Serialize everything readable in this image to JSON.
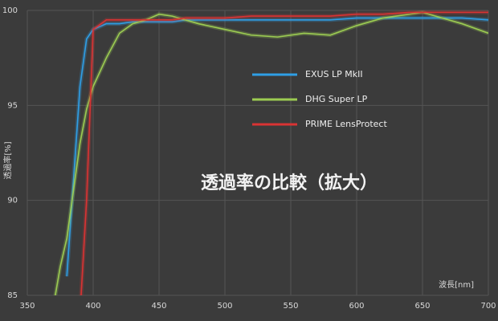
{
  "chart_data": {
    "type": "line",
    "title": "透過率の比較（拡大）",
    "x_label": "波長[nm]",
    "y_label": "透過率[%]",
    "x": [
      370,
      375,
      380,
      385,
      390,
      395,
      400,
      410,
      420,
      430,
      440,
      450,
      460,
      470,
      480,
      500,
      520,
      540,
      560,
      580,
      600,
      620,
      640,
      650,
      660,
      680,
      700
    ],
    "series": [
      {
        "name": "EXUS LP MkII",
        "color": "#2f9fe6",
        "values": [
          null,
          null,
          86,
          91,
          96,
          98.5,
          99,
          99.3,
          99.3,
          99.4,
          99.4,
          99.4,
          99.4,
          99.5,
          99.5,
          99.5,
          99.5,
          99.5,
          99.5,
          99.5,
          99.6,
          99.6,
          99.6,
          99.6,
          99.6,
          99.6,
          99.5
        ]
      },
      {
        "name": "DHG Super LP",
        "color": "#9ccc52",
        "values": [
          84.5,
          86.5,
          88,
          90.5,
          93,
          94.8,
          96,
          97.5,
          98.8,
          99.3,
          99.5,
          99.8,
          99.7,
          99.5,
          99.3,
          99,
          98.7,
          98.6,
          98.8,
          98.7,
          99.2,
          99.6,
          99.8,
          99.9,
          99.7,
          99.3,
          98.8
        ]
      },
      {
        "name": "PRIME LensProtect",
        "color": "#d93333",
        "values": [
          null,
          null,
          null,
          null,
          84,
          90,
          99,
          99.5,
          99.5,
          99.5,
          99.5,
          99.5,
          99.5,
          99.6,
          99.6,
          99.6,
          99.7,
          99.7,
          99.7,
          99.7,
          99.8,
          99.8,
          99.9,
          99.9,
          99.9,
          99.9,
          99.9
        ]
      }
    ],
    "xlim": [
      350,
      700
    ],
    "xticks": [
      350,
      400,
      450,
      500,
      550,
      600,
      650,
      700
    ],
    "ylim": [
      85,
      100
    ],
    "yticks": [
      85,
      90,
      95,
      100
    ],
    "grid": true
  }
}
